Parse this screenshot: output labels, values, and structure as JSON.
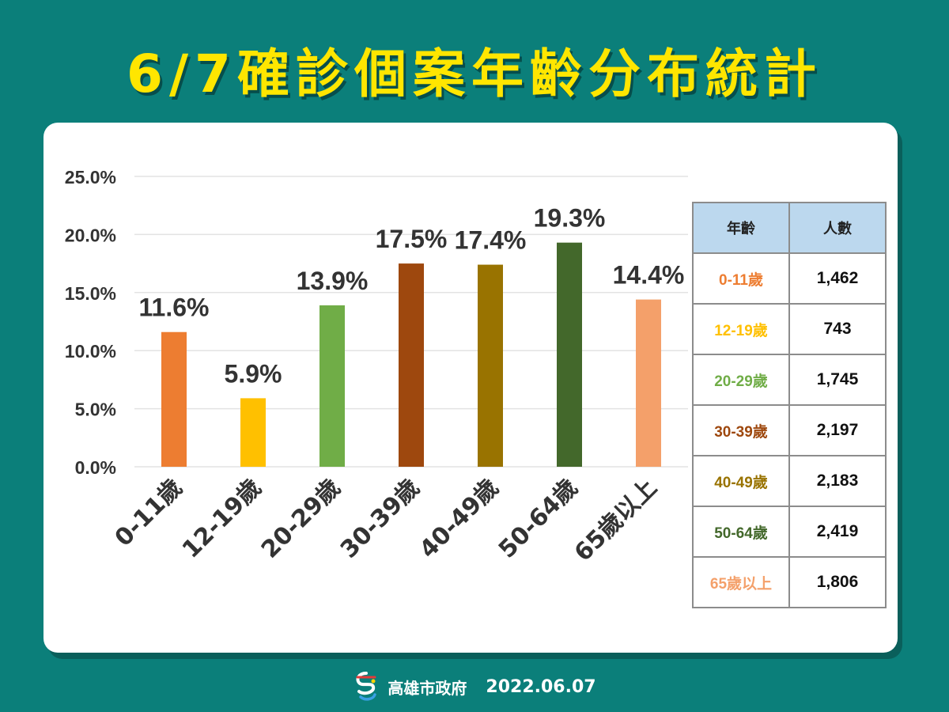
{
  "title": "6/7確診個案年齡分布統計",
  "chart_data": {
    "type": "bar",
    "categories": [
      "0-11歲",
      "12-19歲",
      "20-29歲",
      "30-39歲",
      "40-49歲",
      "50-64歲",
      "65歲以上"
    ],
    "values": [
      11.6,
      5.9,
      13.9,
      17.5,
      17.4,
      19.3,
      14.4
    ],
    "value_labels": [
      "11.6%",
      "5.9%",
      "13.9%",
      "17.5%",
      "17.4%",
      "19.3%",
      "14.4%"
    ],
    "colors": [
      "#ed7d31",
      "#ffc000",
      "#70ad47",
      "#9e480e",
      "#997300",
      "#43682b",
      "#f4a06a"
    ],
    "yticks": [
      "0.0%",
      "5.0%",
      "10.0%",
      "15.0%",
      "20.0%",
      "25.0%"
    ],
    "ylim": [
      0,
      25
    ],
    "grid": true,
    "title": "",
    "xlabel": "",
    "ylabel": ""
  },
  "table": {
    "headers": [
      "年齡",
      "人數"
    ],
    "rows": [
      {
        "age": "0-11歲",
        "count": "1,462",
        "color": "#ed7d31"
      },
      {
        "age": "12-19歲",
        "count": "743",
        "color": "#ffc000"
      },
      {
        "age": "20-29歲",
        "count": "1,745",
        "color": "#70ad47"
      },
      {
        "age": "30-39歲",
        "count": "2,197",
        "color": "#9e480e"
      },
      {
        "age": "40-49歲",
        "count": "2,183",
        "color": "#997300"
      },
      {
        "age": "50-64歲",
        "count": "2,419",
        "color": "#43682b"
      },
      {
        "age": "65歲以上",
        "count": "1,806",
        "color": "#f4a06a"
      }
    ]
  },
  "footer": {
    "org": "高雄市政府",
    "date": "2022.06.07",
    "logo_icon": "kaohsiung-logo-icon"
  }
}
